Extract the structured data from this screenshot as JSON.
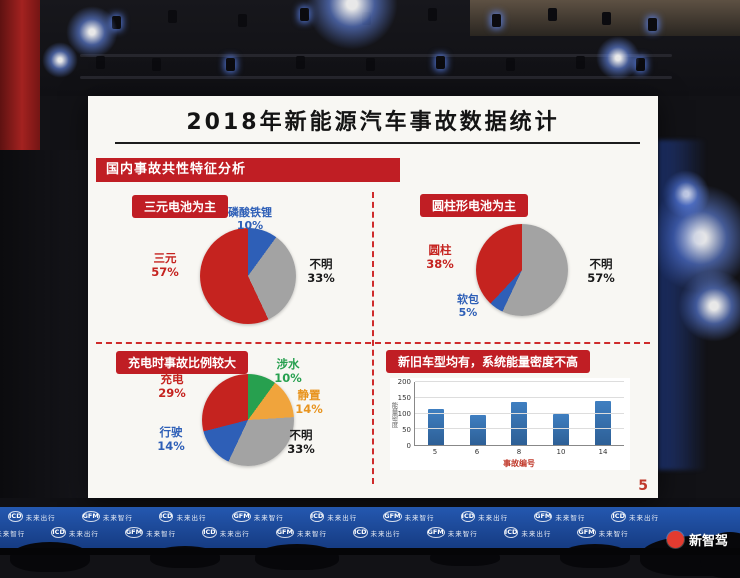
{
  "slide": {
    "title": "2018年新能源汽车事故数据统计",
    "section_banner": "国内事故共性特征分析",
    "page_number": "5"
  },
  "chart_data": [
    {
      "type": "pie",
      "title": "三元电池为主",
      "slices": [
        {
          "label": "磷酸铁锂",
          "pct": 10,
          "pct_label": "10%",
          "color": "#2e5fb7",
          "label_color": "#2e5fb7"
        },
        {
          "label": "不明",
          "pct": 33,
          "pct_label": "33%",
          "color": "#a3a3a3",
          "label_color": "#1a1a1a"
        },
        {
          "label": "三元",
          "pct": 57,
          "pct_label": "57%",
          "color": "#c5231f",
          "label_color": "#c5231f"
        }
      ]
    },
    {
      "type": "pie",
      "title": "圆柱形电池为主",
      "slices": [
        {
          "label": "不明",
          "pct": 57,
          "pct_label": "57%",
          "color": "#a3a3a3",
          "label_color": "#1a1a1a"
        },
        {
          "label": "软包",
          "pct": 5,
          "pct_label": "5%",
          "color": "#2e5fb7",
          "label_color": "#2e5fb7"
        },
        {
          "label": "圆柱",
          "pct": 38,
          "pct_label": "38%",
          "color": "#c5231f",
          "label_color": "#c5231f"
        }
      ]
    },
    {
      "type": "pie",
      "title": "充电时事故比例较大",
      "slices": [
        {
          "label": "涉水",
          "pct": 10,
          "pct_label": "10%",
          "color": "#27a04f",
          "label_color": "#27a04f"
        },
        {
          "label": "静置",
          "pct": 14,
          "pct_label": "14%",
          "color": "#f0a43c",
          "label_color": "#e8941f"
        },
        {
          "label": "不明",
          "pct": 33,
          "pct_label": "33%",
          "color": "#a3a3a3",
          "label_color": "#1a1a1a"
        },
        {
          "label": "行驶",
          "pct": 14,
          "pct_label": "14%",
          "color": "#2e5fb7",
          "label_color": "#2e5fb7"
        },
        {
          "label": "充电",
          "pct": 29,
          "pct_label": "29%",
          "color": "#c5231f",
          "label_color": "#c5231f"
        }
      ]
    },
    {
      "type": "bar",
      "title": "新旧车型均有，系统能量密度不高",
      "categories": [
        "5",
        "6",
        "8",
        "10",
        "14"
      ],
      "values": [
        115,
        95,
        135,
        100,
        140
      ],
      "xlabel": "事故编号",
      "ylabel": "能量密度",
      "ylim": [
        0,
        200
      ],
      "yticks": [
        0,
        50,
        100,
        150,
        200
      ],
      "bar_color": "#3f7fc1"
    }
  ],
  "backdrop": {
    "wall_units": [
      {
        "abbr": "ICD",
        "text": "未来出行"
      },
      {
        "abbr": "GFM",
        "text": "未来智行"
      }
    ],
    "watermark": "新智驾"
  }
}
